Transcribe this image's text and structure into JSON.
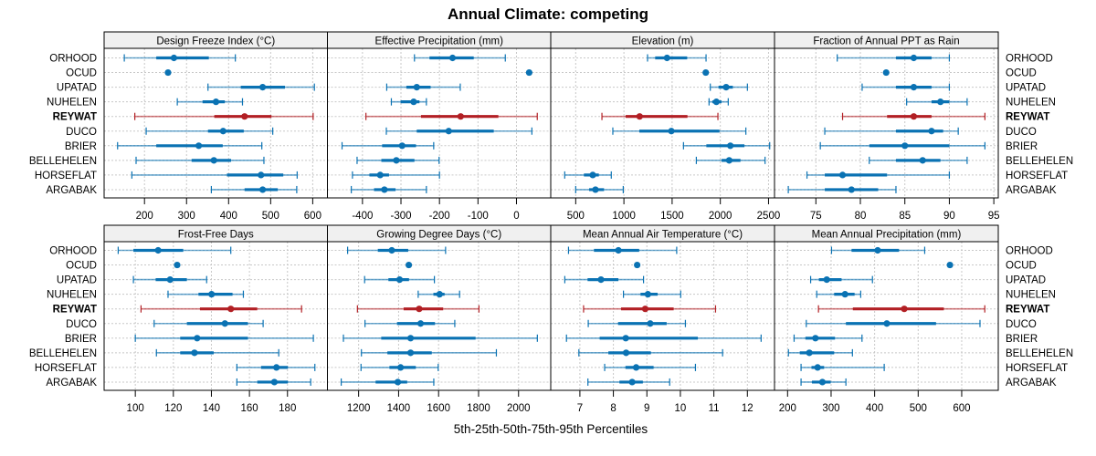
{
  "chart_data": {
    "type": "dotplot-percentile",
    "title": "Annual Climate: competing",
    "xlabel": "5th-25th-50th-75th-95th Percentiles",
    "highlight": "REYWAT",
    "colors": {
      "default": "#0a72b3",
      "highlight": "#b21f24",
      "grid": "#c8c8c8",
      "strip": "#f0f0f0"
    },
    "categories": [
      "ORHOOD",
      "OCUD",
      "UPATAD",
      "NUHELEN",
      "REYWAT",
      "DUCO",
      "BRIER",
      "BELLEHELEN",
      "HORSEFLAT",
      "ARGABAK"
    ],
    "percentile_keys": [
      "p5",
      "p25",
      "p50",
      "p75",
      "p95"
    ],
    "panels": [
      {
        "strip": "Design Freeze Index (°C)",
        "xlim": [
          104,
          635
        ],
        "ticks": [
          200,
          300,
          400,
          500,
          600
        ],
        "values": {
          "ORHOOD": [
            152,
            228,
            270,
            353,
            416
          ],
          "OCUD": [
            256,
            256,
            256,
            256,
            256
          ],
          "UPATAD": [
            351,
            429,
            481,
            534,
            604
          ],
          "NUHELEN": [
            278,
            338,
            370,
            391,
            433
          ],
          "REYWAT": [
            177,
            366,
            438,
            502,
            601
          ],
          "DUCO": [
            204,
            351,
            387,
            436,
            505
          ],
          "BRIER": [
            136,
            228,
            329,
            386,
            479
          ],
          "BELLEHELEN": [
            180,
            312,
            365,
            406,
            484
          ],
          "HORSEFLAT": [
            170,
            396,
            477,
            530,
            563
          ],
          "ARGABAK": [
            359,
            438,
            481,
            517,
            562
          ]
        }
      },
      {
        "strip": "Effective Precipitation (mm)",
        "xlim": [
          -491,
          89
        ],
        "ticks": [
          -400,
          -300,
          -200,
          -100,
          0
        ],
        "values": {
          "ORHOOD": [
            -265,
            -226,
            -166,
            -111,
            -29
          ],
          "OCUD": [
            33,
            33,
            33,
            33,
            33
          ],
          "UPATAD": [
            -337,
            -286,
            -259,
            -223,
            -146
          ],
          "NUHELEN": [
            -325,
            -301,
            -267,
            -252,
            -234
          ],
          "REYWAT": [
            -391,
            -248,
            -145,
            -47,
            54
          ],
          "DUCO": [
            -338,
            -259,
            -176,
            -59,
            40
          ],
          "BRIER": [
            -453,
            -349,
            -297,
            -261,
            -215
          ],
          "BELLEHELEN": [
            -414,
            -351,
            -312,
            -265,
            -201
          ],
          "HORSEFLAT": [
            -426,
            -382,
            -354,
            -331,
            -200
          ],
          "ARGABAK": [
            -429,
            -370,
            -343,
            -314,
            -234
          ]
        }
      },
      {
        "strip": "Elevation (m)",
        "xlim": [
          241,
          2562
        ],
        "ticks": [
          500,
          1000,
          1500,
          2000,
          2500
        ],
        "values": {
          "ORHOOD": [
            1245,
            1324,
            1447,
            1656,
            1852
          ],
          "OCUD": [
            1849,
            1849,
            1849,
            1849,
            1849
          ],
          "UPATAD": [
            1896,
            1981,
            2060,
            2130,
            2281
          ],
          "NUHELEN": [
            1883,
            1918,
            1959,
            2013,
            2082
          ],
          "REYWAT": [
            772,
            1018,
            1163,
            1659,
            1975
          ],
          "DUCO": [
            885,
            1160,
            1492,
            1991,
            2265
          ],
          "BRIER": [
            1618,
            1855,
            2104,
            2250,
            2512
          ],
          "BELLEHELEN": [
            1751,
            2013,
            2092,
            2209,
            2464
          ],
          "HORSEFLAT": [
            386,
            585,
            677,
            740,
            869
          ],
          "ARGABAK": [
            500,
            639,
            705,
            794,
            993
          ]
        }
      },
      {
        "strip": "Fraction of Annual PPT as Rain",
        "xlim": [
          70.35,
          95.5
        ],
        "ticks": [
          75,
          80,
          85,
          90,
          95
        ],
        "values": {
          "ORHOOD": [
            77.4,
            84.0,
            86.0,
            88.0,
            90.0
          ],
          "OCUD": [
            82.9,
            82.9,
            82.9,
            82.9,
            82.9
          ],
          "UPATAD": [
            80.2,
            84.0,
            86.0,
            88.0,
            90.0
          ],
          "NUHELEN": [
            85.2,
            88.0,
            89.0,
            90.0,
            92.0
          ],
          "REYWAT": [
            78.0,
            83.0,
            86.0,
            88.0,
            94.0
          ],
          "DUCO": [
            76.0,
            84.0,
            88.0,
            89.3,
            91.0
          ],
          "BRIER": [
            75.5,
            81.0,
            85.0,
            90.0,
            94.0
          ],
          "BELLEHELEN": [
            81.0,
            84.0,
            87.0,
            89.0,
            92.0
          ],
          "HORSEFLAT": [
            74.0,
            76.0,
            78.0,
            83.0,
            90.0
          ],
          "ARGABAK": [
            71.9,
            76.0,
            79.0,
            82.0,
            84.0
          ]
        }
      },
      {
        "strip": "Frost-Free Days",
        "xlim": [
          83.6,
          201
        ],
        "ticks": [
          100,
          120,
          140,
          160,
          180
        ],
        "values": {
          "ORHOOD": [
            91.0,
            99.0,
            112.0,
            125.2,
            150.2
          ],
          "OCUD": [
            122.0,
            122.0,
            122.0,
            122.0,
            122.0
          ],
          "UPATAD": [
            99.0,
            110.7,
            118.3,
            127.1,
            137.5
          ],
          "NUHELEN": [
            117.2,
            133.2,
            140.1,
            151.1,
            156.8
          ],
          "REYWAT": [
            103.0,
            134.0,
            150.2,
            164.1,
            187.4
          ],
          "DUCO": [
            109.9,
            127.1,
            147.1,
            159.2,
            167.2
          ],
          "BRIER": [
            100.0,
            123.6,
            132.5,
            159.2,
            193.6
          ],
          "BELLEHELEN": [
            111.1,
            123.6,
            131.1,
            141.2,
            175.4
          ],
          "HORSEFLAT": [
            153.4,
            166.1,
            174.2,
            180.2,
            194.4
          ],
          "ARGABAK": [
            153.4,
            164.1,
            173.1,
            180.2,
            192.2
          ]
        }
      },
      {
        "strip": "Growing Degree Days (°C)",
        "xlim": [
          1044,
          2161
        ],
        "ticks": [
          1200,
          1400,
          1600,
          1800,
          2000
        ],
        "values": {
          "ORHOOD": [
            1145,
            1296,
            1366,
            1448,
            1635
          ],
          "OCUD": [
            1451,
            1451,
            1451,
            1451,
            1451
          ],
          "UPATAD": [
            1230,
            1349,
            1405,
            1452,
            1579
          ],
          "NUHELEN": [
            1498,
            1574,
            1605,
            1630,
            1705
          ],
          "REYWAT": [
            1194,
            1425,
            1503,
            1623,
            1802
          ],
          "DUCO": [
            1232,
            1392,
            1510,
            1582,
            1681
          ],
          "BRIER": [
            1124,
            1313,
            1460,
            1785,
            2094
          ],
          "BELLEHELEN": [
            1214,
            1344,
            1460,
            1566,
            1889
          ],
          "HORSEFLAT": [
            1212,
            1354,
            1410,
            1486,
            1598
          ],
          "ARGABAK": [
            1113,
            1285,
            1396,
            1443,
            1576
          ]
        }
      },
      {
        "strip": "Mean Annual Air Temperature (°C)",
        "xlim": [
          6.13,
          12.81
        ],
        "ticks": [
          7,
          8,
          9,
          10,
          11,
          12
        ],
        "values": {
          "ORHOOD": [
            6.66,
            7.42,
            8.15,
            8.77,
            9.89
          ],
          "OCUD": [
            8.71,
            8.71,
            8.71,
            8.71,
            8.71
          ],
          "UPATAD": [
            6.55,
            7.23,
            7.63,
            8.15,
            8.9
          ],
          "NUHELEN": [
            8.3,
            8.81,
            9.03,
            9.32,
            10.01
          ],
          "REYWAT": [
            7.11,
            8.23,
            8.95,
            9.8,
            11.05
          ],
          "DUCO": [
            7.25,
            8.14,
            9.1,
            9.59,
            10.15
          ],
          "BRIER": [
            6.6,
            7.59,
            8.37,
            10.52,
            12.41
          ],
          "BELLEHELEN": [
            6.97,
            7.85,
            8.38,
            9.12,
            11.26
          ],
          "HORSEFLAT": [
            7.74,
            8.36,
            8.68,
            9.2,
            10.45
          ],
          "ARGABAK": [
            7.24,
            8.18,
            8.56,
            8.88,
            9.68
          ]
        }
      },
      {
        "strip": "Mean Annual Precipitation (mm)",
        "xlim": [
          170,
          684
        ],
        "ticks": [
          200,
          300,
          400,
          500,
          600
        ],
        "values": {
          "ORHOOD": [
            301,
            347,
            407,
            456,
            515
          ],
          "OCUD": [
            573,
            573,
            573,
            573,
            573
          ],
          "UPATAD": [
            253,
            272,
            290,
            324,
            395
          ],
          "NUHELEN": [
            267,
            307,
            332,
            354,
            368
          ],
          "REYWAT": [
            271,
            350,
            468,
            559,
            653
          ],
          "DUCO": [
            243,
            334,
            428,
            541,
            642
          ],
          "BRIER": [
            215,
            241,
            264,
            309,
            371
          ],
          "BELLEHELEN": [
            202,
            228,
            250,
            307,
            349
          ],
          "HORSEFLAT": [
            231,
            255,
            269,
            284,
            422
          ],
          "ARGABAK": [
            231,
            256,
            280,
            299,
            334
          ]
        }
      }
    ]
  }
}
